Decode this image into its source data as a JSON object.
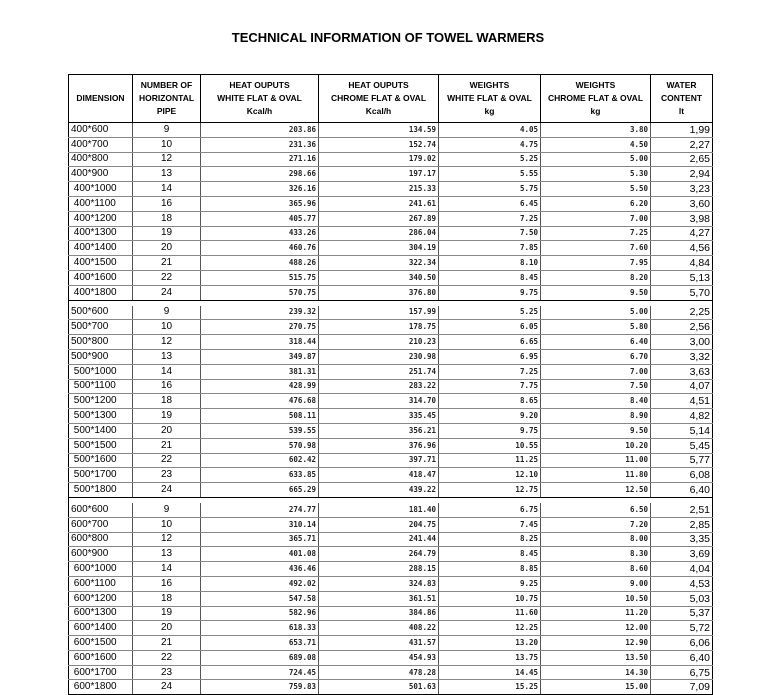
{
  "title": "TECHNICAL INFORMATION OF TOWEL WARMERS",
  "columns": [
    [
      "DIMENSION"
    ],
    [
      "NUMBER OF",
      "HORIZONTAL",
      "PIPE"
    ],
    [
      "HEAT OUPUTS",
      "WHITE FLAT & OVAL",
      "Kcal/h"
    ],
    [
      "HEAT OUPUTS",
      "CHROME FLAT & OVAL",
      "Kcal/h"
    ],
    [
      "WEIGHTS",
      "WHITE FLAT & OVAL",
      "kg"
    ],
    [
      "WEIGHTS",
      "CHROME FLAT & OVAL",
      "kg"
    ],
    [
      "WATER",
      "CONTENT",
      "lt"
    ]
  ],
  "sections": [
    [
      [
        "400*600",
        "9",
        "203.86",
        "134.59",
        "4.05",
        "3.80",
        "1,99"
      ],
      [
        "400*700",
        "10",
        "231.36",
        "152.74",
        "4.75",
        "4.50",
        "2,27"
      ],
      [
        "400*800",
        "12",
        "271.16",
        "179.02",
        "5.25",
        "5.00",
        "2,65"
      ],
      [
        "400*900",
        "13",
        "298.66",
        "197.17",
        "5.55",
        "5.30",
        "2,94"
      ],
      [
        " 400*1000",
        "14",
        "326.16",
        "215.33",
        "5.75",
        "5.50",
        "3,23"
      ],
      [
        " 400*1100",
        "16",
        "365.96",
        "241.61",
        "6.45",
        "6.20",
        "3,60"
      ],
      [
        " 400*1200",
        "18",
        "405.77",
        "267.89",
        "7.25",
        "7.00",
        "3,98"
      ],
      [
        " 400*1300",
        "19",
        "433.26",
        "286.04",
        "7.50",
        "7.25",
        "4,27"
      ],
      [
        " 400*1400",
        "20",
        "460.76",
        "304.19",
        "7.85",
        "7.60",
        "4,56"
      ],
      [
        " 400*1500",
        "21",
        "488.26",
        "322.34",
        "8.10",
        "7.95",
        "4,84"
      ],
      [
        " 400*1600",
        "22",
        "515.75",
        "340.50",
        "8.45",
        "8.20",
        "5,13"
      ],
      [
        " 400*1800",
        "24",
        "570.75",
        "376.80",
        "9.75",
        "9.50",
        "5,70"
      ]
    ],
    [
      [
        "500*600",
        "9",
        "239.32",
        "157.99",
        "5.25",
        "5.00",
        "2,25"
      ],
      [
        "500*700",
        "10",
        "270.75",
        "178.75",
        "6.05",
        "5.80",
        "2,56"
      ],
      [
        "500*800",
        "12",
        "318.44",
        "210.23",
        "6.65",
        "6.40",
        "3,00"
      ],
      [
        "500*900",
        "13",
        "349.87",
        "230.98",
        "6.95",
        "6.70",
        "3,32"
      ],
      [
        " 500*1000",
        "14",
        "381.31",
        "251.74",
        "7.25",
        "7.00",
        "3,63"
      ],
      [
        " 500*1100",
        "16",
        "428.99",
        "283.22",
        "7.75",
        "7.50",
        "4,07"
      ],
      [
        " 500*1200",
        "18",
        "476.68",
        "314.70",
        "8.65",
        "8.40",
        "4,51"
      ],
      [
        " 500*1300",
        "19",
        "508.11",
        "335.45",
        "9.20",
        "8.90",
        "4,82"
      ],
      [
        " 500*1400",
        "20",
        "539.55",
        "356.21",
        "9.75",
        "9.50",
        "5,14"
      ],
      [
        " 500*1500",
        "21",
        "570.98",
        "376.96",
        "10.55",
        "10.20",
        "5,45"
      ],
      [
        " 500*1600",
        "22",
        "602.42",
        "397.71",
        "11.25",
        "11.00",
        "5,77"
      ],
      [
        " 500*1700",
        "23",
        "633.85",
        "418.47",
        "12.10",
        "11.80",
        "6,08"
      ],
      [
        " 500*1800",
        "24",
        "665.29",
        "439.22",
        "12.75",
        "12.50",
        "6,40"
      ]
    ],
    [
      [
        "600*600",
        "9",
        "274.77",
        "181.40",
        "6.75",
        "6.50",
        "2,51"
      ],
      [
        "600*700",
        "10",
        "310.14",
        "204.75",
        "7.45",
        "7.20",
        "2,85"
      ],
      [
        "600*800",
        "12",
        "365.71",
        "241.44",
        "8.25",
        "8.00",
        "3,35"
      ],
      [
        "600*900",
        "13",
        "401.08",
        "264.79",
        "8.45",
        "8.30",
        "3,69"
      ],
      [
        " 600*1000",
        "14",
        "436.46",
        "288.15",
        "8.85",
        "8.60",
        "4,04"
      ],
      [
        " 600*1100",
        "16",
        "492.02",
        "324.83",
        "9.25",
        "9.00",
        "4,53"
      ],
      [
        " 600*1200",
        "18",
        "547.58",
        "361.51",
        "10.75",
        "10.50",
        "5,03"
      ],
      [
        " 600*1300",
        "19",
        "582.96",
        "384.86",
        "11.60",
        "11.20",
        "5,37"
      ],
      [
        " 600*1400",
        "20",
        "618.33",
        "408.22",
        "12.25",
        "12.00",
        "5,72"
      ],
      [
        " 600*1500",
        "21",
        "653.71",
        "431.57",
        "13.20",
        "12.90",
        "6,06"
      ],
      [
        " 600*1600",
        "22",
        "689.08",
        "454.93",
        "13.75",
        "13.50",
        "6,40"
      ],
      [
        " 600*1700",
        "23",
        "724.45",
        "478.28",
        "14.45",
        "14.30",
        "6,75"
      ],
      [
        " 600*1800",
        "24",
        "759.83",
        "501.63",
        "15.25",
        "15.00",
        "7,09"
      ]
    ]
  ]
}
